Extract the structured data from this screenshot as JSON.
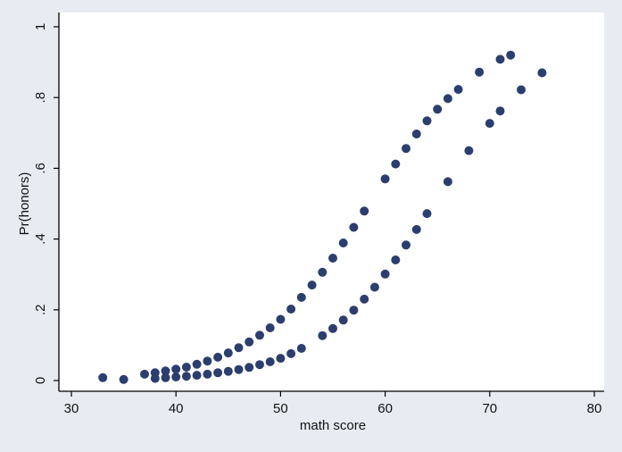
{
  "chart_data": {
    "type": "scatter",
    "title": "",
    "xlabel": "math score",
    "ylabel": "Pr(honors)",
    "xlim": [
      30,
      80
    ],
    "ylim": [
      0,
      1
    ],
    "x_ticks": [
      "30",
      "40",
      "50",
      "60",
      "70",
      "80"
    ],
    "y_ticks": [
      "0",
      ".2",
      ".4",
      ".6",
      ".8",
      "1"
    ],
    "grid": false,
    "legend": "none",
    "colors": {
      "background": "#e8ecf2",
      "plot_area": "#ffffff",
      "marker": "#2c3e6e",
      "axis": "#000000"
    },
    "series": [
      {
        "points": [
          [
            33,
            0.008
          ],
          [
            35,
            0.003
          ],
          [
            37,
            0.018
          ],
          [
            38,
            0.022
          ],
          [
            39,
            0.027
          ],
          [
            40,
            0.032
          ],
          [
            41,
            0.038
          ],
          [
            42,
            0.046
          ],
          [
            43,
            0.055
          ],
          [
            44,
            0.066
          ],
          [
            45,
            0.078
          ],
          [
            46,
            0.093
          ],
          [
            47,
            0.109
          ],
          [
            48,
            0.128
          ],
          [
            49,
            0.149
          ],
          [
            50,
            0.173
          ],
          [
            51,
            0.202
          ],
          [
            52,
            0.235
          ],
          [
            53,
            0.27
          ],
          [
            54,
            0.306
          ],
          [
            55,
            0.346
          ],
          [
            56,
            0.389
          ],
          [
            57,
            0.433
          ],
          [
            58,
            0.479
          ],
          [
            60,
            0.57
          ],
          [
            61,
            0.612
          ],
          [
            62,
            0.656
          ],
          [
            63,
            0.697
          ],
          [
            64,
            0.734
          ],
          [
            65,
            0.767
          ],
          [
            66,
            0.797
          ],
          [
            67,
            0.823
          ],
          [
            69,
            0.872
          ],
          [
            71,
            0.908
          ],
          [
            72,
            0.92
          ]
        ]
      },
      {
        "points": [
          [
            38,
            0.006
          ],
          [
            39,
            0.008
          ],
          [
            40,
            0.01
          ],
          [
            41,
            0.012
          ],
          [
            42,
            0.015
          ],
          [
            43,
            0.018
          ],
          [
            44,
            0.022
          ],
          [
            45,
            0.026
          ],
          [
            46,
            0.031
          ],
          [
            47,
            0.037
          ],
          [
            48,
            0.045
          ],
          [
            49,
            0.053
          ],
          [
            50,
            0.063
          ],
          [
            51,
            0.076
          ],
          [
            52,
            0.091
          ],
          [
            54,
            0.127
          ],
          [
            55,
            0.147
          ],
          [
            56,
            0.171
          ],
          [
            57,
            0.199
          ],
          [
            58,
            0.23
          ],
          [
            59,
            0.264
          ],
          [
            60,
            0.301
          ],
          [
            61,
            0.341
          ],
          [
            62,
            0.383
          ],
          [
            63,
            0.427
          ],
          [
            64,
            0.472
          ],
          [
            66,
            0.562
          ],
          [
            68,
            0.65
          ],
          [
            70,
            0.727
          ],
          [
            71,
            0.762
          ],
          [
            73,
            0.822
          ],
          [
            75,
            0.87
          ]
        ]
      }
    ]
  }
}
